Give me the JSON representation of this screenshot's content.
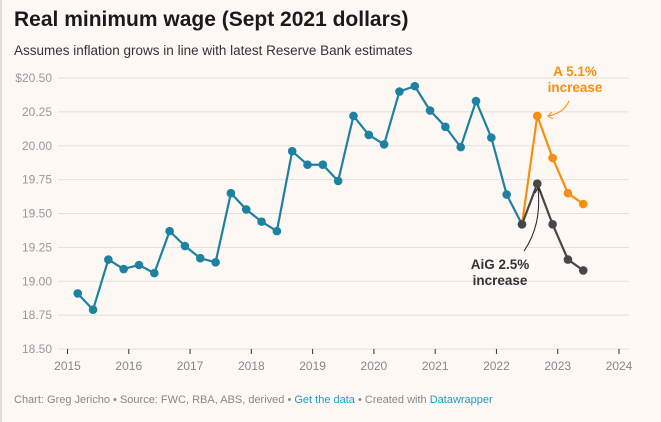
{
  "title": "Real minimum wage (Sept 2021 dollars)",
  "subtitle": "Assumes inflation grows in line with latest Reserve Bank estimates",
  "footer": {
    "credit": "Chart: Greg Jericho",
    "source": "Source: FWC, RBA, ABS, derived",
    "get_data": "Get the data",
    "created_with": "Created with",
    "tool": "Datawrapper",
    "sep": " • "
  },
  "chart_data": {
    "type": "line",
    "ylim": [
      18.5,
      20.5
    ],
    "xlim": [
      2015,
      2024
    ],
    "yticks": [
      "18.50",
      "18.75",
      "19.00",
      "19.25",
      "19.50",
      "19.75",
      "20.00",
      "20.25",
      "$20.50"
    ],
    "ytick_values": [
      18.5,
      18.75,
      19,
      19.25,
      19.5,
      19.75,
      20,
      20.25,
      20.5
    ],
    "xticks": [
      "2015",
      "2016",
      "2017",
      "2018",
      "2019",
      "2020",
      "2021",
      "2022",
      "2023",
      "2024"
    ],
    "grid": true,
    "colors": {
      "historical": "#1d81a2",
      "increase_5_1": "#f68f0f",
      "increase_2_5": "#474747"
    },
    "series": [
      {
        "key": "historical",
        "x": [
          "2015-03",
          "2015-06",
          "2015-09",
          "2015-12",
          "2016-03",
          "2016-06",
          "2016-09",
          "2016-12",
          "2017-03",
          "2017-06",
          "2017-09",
          "2017-12",
          "2018-03",
          "2018-06",
          "2018-09",
          "2018-12",
          "2019-03",
          "2019-06",
          "2019-09",
          "2019-12",
          "2020-03",
          "2020-06",
          "2020-09",
          "2020-12",
          "2021-03",
          "2021-06",
          "2021-09",
          "2021-12",
          "2022-03",
          "2022-06"
        ],
        "values": [
          18.91,
          18.79,
          19.16,
          19.09,
          19.12,
          19.06,
          19.37,
          19.26,
          19.17,
          19.14,
          19.65,
          19.53,
          19.44,
          19.37,
          19.96,
          19.86,
          19.86,
          19.74,
          20.22,
          20.08,
          20.01,
          20.4,
          20.44,
          20.26,
          20.14,
          19.99,
          20.33,
          20.06,
          19.64,
          19.42
        ]
      },
      {
        "key": "increase_5_1",
        "x": [
          "2022-06",
          "2022-09",
          "2022-12",
          "2023-03",
          "2023-06"
        ],
        "values": [
          19.42,
          20.22,
          19.91,
          19.65,
          19.57
        ]
      },
      {
        "key": "increase_2_5",
        "x": [
          "2022-06",
          "2022-09",
          "2022-12",
          "2023-03",
          "2023-06"
        ],
        "values": [
          19.42,
          19.72,
          19.42,
          19.16,
          19.08
        ]
      }
    ],
    "annotations": [
      {
        "lines": [
          "A 5.1%",
          "increase"
        ],
        "color": "#f68f0f"
      },
      {
        "lines": [
          "AiG 2.5%",
          "increase"
        ],
        "color": "#333333"
      }
    ]
  }
}
